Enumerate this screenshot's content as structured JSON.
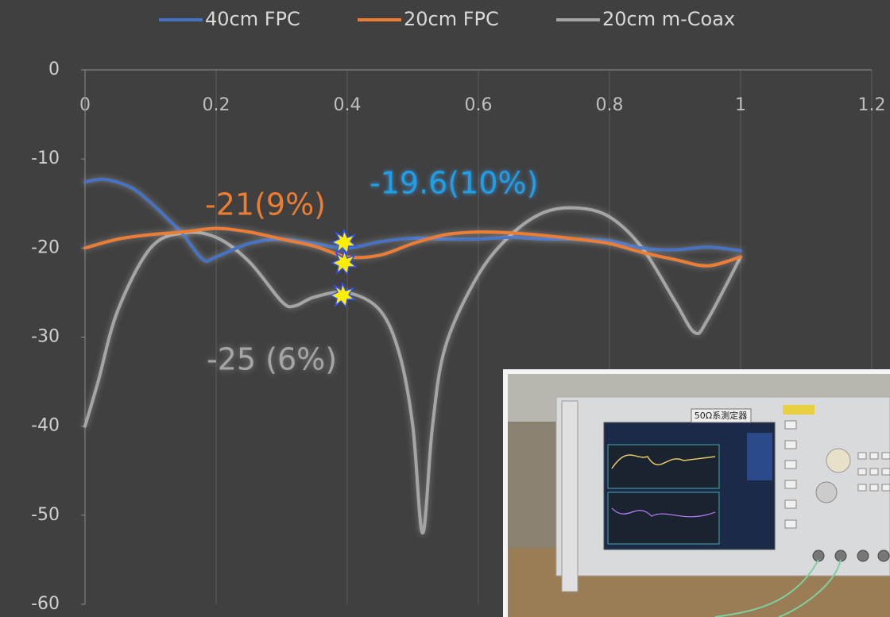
{
  "chart_data": {
    "type": "line",
    "legend": "top",
    "grid": true,
    "xlim": [
      0,
      1.2
    ],
    "xticks": [
      0,
      0.2,
      0.4,
      0.6,
      0.8,
      1,
      1.2
    ],
    "ylim": [
      -60,
      0
    ],
    "yticks": [
      0,
      -10,
      -20,
      -30,
      -40,
      -50,
      -60
    ],
    "series": [
      {
        "name": "40cm FPC",
        "color": "#4472c4",
        "x": [
          0,
          0.03,
          0.07,
          0.1,
          0.13,
          0.15,
          0.18,
          0.2,
          0.25,
          0.3,
          0.35,
          0.4,
          0.45,
          0.5,
          0.55,
          0.6,
          0.65,
          0.7,
          0.75,
          0.8,
          0.85,
          0.9,
          0.95,
          1
        ],
        "values": [
          -12.6,
          -12.3,
          -13.2,
          -14.9,
          -17,
          -18.5,
          -21.3,
          -21,
          -19.5,
          -19,
          -19.5,
          -20,
          -19.3,
          -18.9,
          -19,
          -19,
          -18.8,
          -19,
          -19,
          -19.2,
          -20,
          -20.2,
          -19.9,
          -20.3
        ]
      },
      {
        "name": "20cm FPC",
        "color": "#ed7d31",
        "x": [
          0,
          0.05,
          0.1,
          0.15,
          0.2,
          0.25,
          0.3,
          0.35,
          0.4,
          0.45,
          0.5,
          0.55,
          0.6,
          0.65,
          0.7,
          0.75,
          0.8,
          0.85,
          0.9,
          0.95,
          1
        ],
        "values": [
          -20,
          -19,
          -18.5,
          -18.2,
          -17.8,
          -18.2,
          -19,
          -19.8,
          -21,
          -20.8,
          -19.5,
          -18.5,
          -18.2,
          -18.3,
          -18.6,
          -19,
          -19.5,
          -20.5,
          -21.3,
          -22,
          -21
        ]
      },
      {
        "name": "20cm m-Coax",
        "color": "#a5a5a5",
        "x": [
          0,
          0.02,
          0.05,
          0.1,
          0.15,
          0.2,
          0.25,
          0.3,
          0.32,
          0.35,
          0.4,
          0.45,
          0.48,
          0.5,
          0.515,
          0.53,
          0.55,
          0.6,
          0.65,
          0.7,
          0.75,
          0.8,
          0.85,
          0.9,
          0.93,
          0.95,
          1
        ],
        "values": [
          -40,
          -35,
          -27,
          -20,
          -18.3,
          -18.8,
          -21.5,
          -26,
          -26.5,
          -25.5,
          -25,
          -27,
          -32,
          -40,
          -52,
          -40,
          -31,
          -23,
          -18.5,
          -16,
          -15.5,
          -16.5,
          -20,
          -26,
          -29.5,
          -28,
          -21
        ]
      }
    ],
    "annotations": [
      {
        "text": "-21(9%)",
        "color": "#ed7d31"
      },
      {
        "text": "-19.6(10%)",
        "color": "#1ea0e6"
      },
      {
        "text": "-25 (6%)",
        "color": "#a5a5a5"
      }
    ],
    "inset_label": "50Ω系測定器"
  }
}
